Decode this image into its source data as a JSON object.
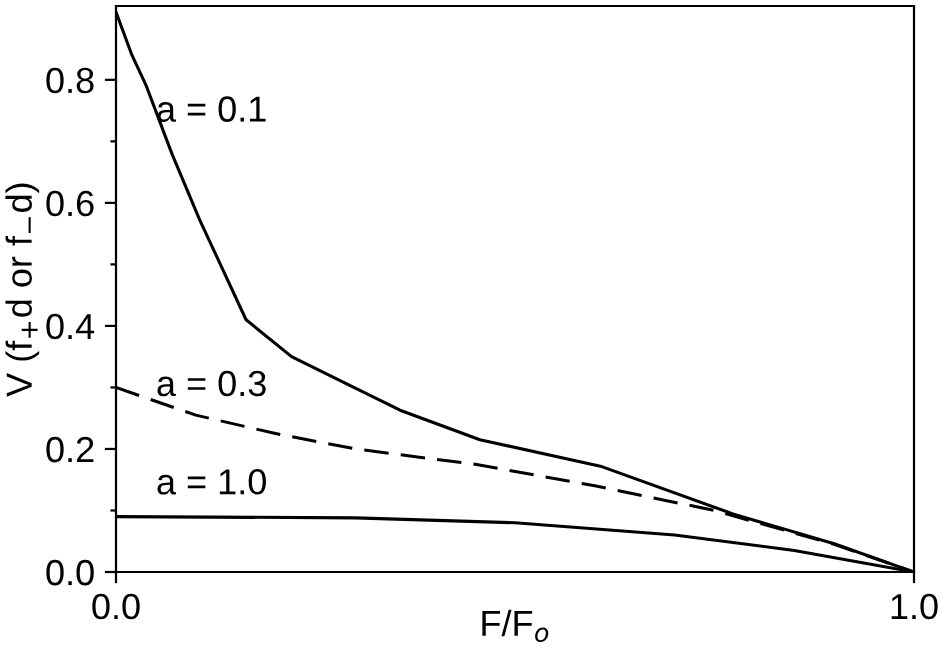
{
  "chart_data": {
    "type": "line",
    "xlabel": "F/F$_{o}$",
    "ylabel": "V (f$_{+}$d or f$_{−}$d)",
    "xlim": [
      0,
      1
    ],
    "ylim": [
      0,
      0.92
    ],
    "xticks": [
      {
        "value": 0,
        "label": "0.0"
      },
      {
        "value": 1,
        "label": "1.0"
      }
    ],
    "yticks": [
      {
        "value": 0,
        "label": "0.0"
      },
      {
        "value": 0.1,
        "label": null
      },
      {
        "value": 0.2,
        "label": "0.2"
      },
      {
        "value": 0.3,
        "label": null
      },
      {
        "value": 0.4,
        "label": "0.4"
      },
      {
        "value": 0.5,
        "label": null
      },
      {
        "value": 0.6,
        "label": "0.6"
      },
      {
        "value": 0.7,
        "label": null
      },
      {
        "value": 0.8,
        "label": "0.8"
      }
    ],
    "grid": false,
    "legend": false,
    "marker": "none",
    "series": [
      {
        "name": "a = 0.1",
        "color": "#000000",
        "line_style": "solid",
        "x": [
          0,
          0.02,
          0.038,
          0.07,
          0.105,
          0.163,
          0.22,
          0.298,
          0.356,
          0.456,
          0.607,
          0.774,
          0.9,
          1
        ],
        "values": [
          0.91,
          0.84,
          0.79,
          0.68,
          0.572,
          0.41,
          0.35,
          0.3,
          0.263,
          0.215,
          0.172,
          0.094,
          0.046,
          0
        ]
      },
      {
        "name": "a = 0.3",
        "color": "#000000",
        "line_style": "dashed",
        "x": [
          0,
          0.1,
          0.2,
          0.3,
          0.45,
          0.6,
          0.75,
          0.9,
          1
        ],
        "values": [
          0.3,
          0.255,
          0.225,
          0.2,
          0.175,
          0.14,
          0.1,
          0.045,
          0
        ]
      },
      {
        "name": "a = 1.0",
        "color": "#000000",
        "line_style": "solid",
        "x": [
          0,
          0.3,
          0.5,
          0.7,
          0.85,
          1
        ],
        "values": [
          0.09,
          0.088,
          0.08,
          0.06,
          0.035,
          0
        ]
      }
    ]
  }
}
